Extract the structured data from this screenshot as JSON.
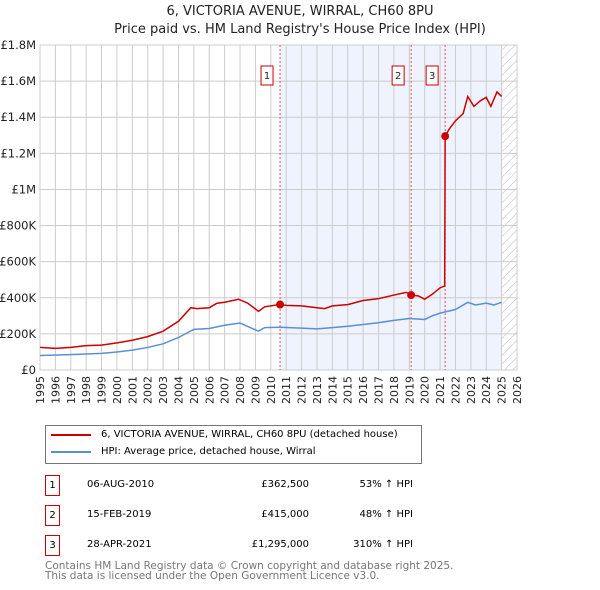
{
  "title": "6, VICTORIA AVENUE, WIRRAL, CH60 8PU",
  "subtitle": "Price paid vs. HM Land Registry's House Price Index (HPI)",
  "chart_data": {
    "type": "line",
    "title": "6, VICTORIA AVENUE, WIRRAL, CH60 8PU",
    "subtitle": "Price paid vs. HM Land Registry's House Price Index (HPI)",
    "xlim": [
      1995,
      2026
    ],
    "ylim": [
      0,
      1800000
    ],
    "x_ticks": [
      1995,
      1996,
      1997,
      1998,
      1999,
      2000,
      2001,
      2002,
      2003,
      2004,
      2005,
      2006,
      2007,
      2008,
      2009,
      2010,
      2011,
      2012,
      2013,
      2014,
      2015,
      2016,
      2017,
      2018,
      2019,
      2020,
      2021,
      2022,
      2023,
      2024,
      2025,
      2026
    ],
    "y_ticks": [
      0,
      200000,
      400000,
      600000,
      800000,
      1000000,
      1200000,
      1400000,
      1600000,
      1800000
    ],
    "y_tick_labels": [
      "£0",
      "£200K",
      "£400K",
      "£600K",
      "£800K",
      "£1M",
      "£1.2M",
      "£1.4M",
      "£1.6M",
      "£1.8M"
    ],
    "grid": true,
    "shaded_from": 2010.6,
    "hatched_from": 2025.0,
    "series": [
      {
        "name": "6, VICTORIA AVENUE, WIRRAL, CH60 8PU (detached house)",
        "color": "#cc0000",
        "x": [
          1995,
          1996,
          1997,
          1998,
          1999,
          2000,
          2001,
          2002,
          2003,
          2004,
          2004.8,
          2005.2,
          2006,
          2006.5,
          2007,
          2007.9,
          2008.5,
          2009.2,
          2009.6,
          2010.6,
          2011,
          2012,
          2013,
          2013.5,
          2014,
          2015,
          2016,
          2017,
          2018,
          2018.8,
          2019.12,
          2019.6,
          2020,
          2020.5,
          2021,
          2021.3,
          2021.33,
          2021.6,
          2022,
          2022.5,
          2022.8,
          2023.2,
          2023.6,
          2024,
          2024.3,
          2024.7,
          2025
        ],
        "y": [
          125000,
          120000,
          125000,
          135000,
          138000,
          150000,
          165000,
          185000,
          215000,
          270000,
          345000,
          340000,
          345000,
          370000,
          375000,
          392000,
          370000,
          325000,
          350000,
          362500,
          358000,
          355000,
          345000,
          340000,
          355000,
          362000,
          385000,
          395000,
          415000,
          430000,
          415000,
          410000,
          392000,
          420000,
          455000,
          465000,
          1295000,
          1335000,
          1380000,
          1420000,
          1515000,
          1460000,
          1490000,
          1510000,
          1460000,
          1540000,
          1515000
        ]
      },
      {
        "name": "HPI: Average price, detached house, Wirral",
        "color": "#5b8fd4",
        "x": [
          1995,
          1997,
          1999,
          2000,
          2001,
          2002,
          2003,
          2004,
          2005,
          2006,
          2007,
          2008,
          2009.2,
          2009.6,
          2010.6,
          2012,
          2013,
          2014,
          2015,
          2016,
          2017,
          2018,
          2019,
          2020,
          2020.5,
          2021,
          2022,
          2022.8,
          2023.3,
          2024,
          2024.5,
          2025
        ],
        "y": [
          80000,
          85000,
          92000,
          100000,
          110000,
          125000,
          145000,
          180000,
          225000,
          230000,
          248000,
          260000,
          215000,
          235000,
          237000,
          232000,
          228000,
          235000,
          242000,
          252000,
          262000,
          275000,
          285000,
          280000,
          300000,
          315000,
          335000,
          375000,
          360000,
          370000,
          360000,
          375000
        ]
      }
    ],
    "markers": [
      {
        "label": "1",
        "x": 2010.6,
        "y": 362500
      },
      {
        "label": "2",
        "x": 2019.12,
        "y": 415000
      },
      {
        "label": "3",
        "x": 2021.33,
        "y": 1295000
      }
    ]
  },
  "legend": [
    {
      "label": "6, VICTORIA AVENUE, WIRRAL, CH60 8PU (detached house)",
      "color": "#cc0000"
    },
    {
      "label": "HPI: Average price, detached house, Wirral",
      "color": "#5b8fd4"
    }
  ],
  "transactions": [
    {
      "num": "1",
      "date": "06-AUG-2010",
      "price": "£362,500",
      "hpi": "53% ↑ HPI"
    },
    {
      "num": "2",
      "date": "15-FEB-2019",
      "price": "£415,000",
      "hpi": "48% ↑ HPI"
    },
    {
      "num": "3",
      "date": "28-APR-2021",
      "price": "£1,295,000",
      "hpi": "310% ↑ HPI"
    }
  ],
  "footer": {
    "line1": "Contains HM Land Registry data © Crown copyright and database right 2025.",
    "line2": "This data is licensed under the Open Government Licence v3.0."
  }
}
